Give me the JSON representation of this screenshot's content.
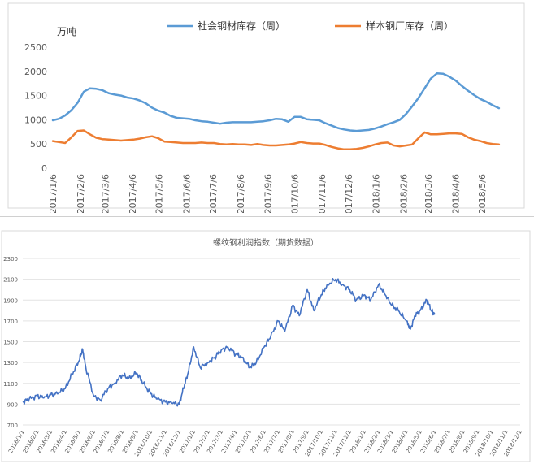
{
  "chart_data": [
    {
      "type": "line",
      "unit": "万吨",
      "ylim": [
        0,
        2500
      ],
      "yticks": [
        0,
        500,
        1000,
        1500,
        2000,
        2500
      ],
      "xticks": [
        "2017/1/6",
        "2017/2/6",
        "2017/3/6",
        "2017/4/6",
        "2017/5/6",
        "2017/6/6",
        "2017/7/6",
        "2017/8/6",
        "2017/9/6",
        "2017/10/6",
        "2017/11/6",
        "2017/12/6",
        "2018/1/6",
        "2018/2/6",
        "2018/3/6",
        "2018/4/6",
        "2018/5/6"
      ],
      "legend_position": "top",
      "grid": false,
      "series": [
        {
          "name": "社会钢材库存（周）",
          "color": "#5b9bd5",
          "x": [
            "2017/1/6",
            "2017/1/13",
            "2017/1/20",
            "2017/1/27",
            "2017/2/3",
            "2017/2/10",
            "2017/2/17",
            "2017/2/24",
            "2017/3/3",
            "2017/3/10",
            "2017/3/17",
            "2017/3/24",
            "2017/3/31",
            "2017/4/7",
            "2017/4/14",
            "2017/4/21",
            "2017/4/28",
            "2017/5/5",
            "2017/5/12",
            "2017/5/19",
            "2017/5/26",
            "2017/6/2",
            "2017/6/9",
            "2017/6/16",
            "2017/6/23",
            "2017/6/30",
            "2017/7/7",
            "2017/7/14",
            "2017/7/21",
            "2017/7/28",
            "2017/8/4",
            "2017/8/11",
            "2017/8/18",
            "2017/8/25",
            "2017/9/1",
            "2017/9/8",
            "2017/9/15",
            "2017/9/22",
            "2017/9/29",
            "2017/10/6",
            "2017/10/13",
            "2017/10/20",
            "2017/10/27",
            "2017/11/3",
            "2017/11/10",
            "2017/11/17",
            "2017/11/24",
            "2017/12/1",
            "2017/12/8",
            "2017/12/15",
            "2017/12/22",
            "2017/12/29",
            "2018/1/5",
            "2018/1/12",
            "2018/1/19",
            "2018/1/26",
            "2018/2/2",
            "2018/2/9",
            "2018/2/16",
            "2018/2/23",
            "2018/3/2",
            "2018/3/9",
            "2018/3/16",
            "2018/3/23",
            "2018/3/30",
            "2018/4/6",
            "2018/4/13",
            "2018/4/20",
            "2018/4/27",
            "2018/5/4",
            "2018/5/11",
            "2018/5/18",
            "2018/5/25"
          ],
          "values": [
            990,
            1020,
            1090,
            1200,
            1350,
            1580,
            1650,
            1640,
            1610,
            1550,
            1520,
            1500,
            1460,
            1440,
            1400,
            1340,
            1250,
            1190,
            1150,
            1080,
            1040,
            1030,
            1020,
            990,
            970,
            960,
            940,
            920,
            940,
            950,
            950,
            950,
            950,
            960,
            970,
            990,
            1020,
            1010,
            960,
            1060,
            1060,
            1010,
            1000,
            990,
            930,
            880,
            830,
            800,
            780,
            770,
            780,
            790,
            820,
            860,
            910,
            950,
            1000,
            1120,
            1280,
            1450,
            1650,
            1850,
            1960,
            1950,
            1890,
            1810,
            1700,
            1600,
            1510,
            1430,
            1370,
            1300,
            1240
          ]
        },
        {
          "name": "样本钢厂库存（周）",
          "color": "#ed7d31",
          "x": [
            "2017/1/6",
            "2017/1/13",
            "2017/1/20",
            "2017/1/27",
            "2017/2/3",
            "2017/2/10",
            "2017/2/17",
            "2017/2/24",
            "2017/3/3",
            "2017/3/10",
            "2017/3/17",
            "2017/3/24",
            "2017/3/31",
            "2017/4/7",
            "2017/4/14",
            "2017/4/21",
            "2017/4/28",
            "2017/5/5",
            "2017/5/12",
            "2017/5/19",
            "2017/5/26",
            "2017/6/2",
            "2017/6/9",
            "2017/6/16",
            "2017/6/23",
            "2017/6/30",
            "2017/7/7",
            "2017/7/14",
            "2017/7/21",
            "2017/7/28",
            "2017/8/4",
            "2017/8/11",
            "2017/8/18",
            "2017/8/25",
            "2017/9/1",
            "2017/9/8",
            "2017/9/15",
            "2017/9/22",
            "2017/9/29",
            "2017/10/6",
            "2017/10/13",
            "2017/10/20",
            "2017/10/27",
            "2017/11/3",
            "2017/11/10",
            "2017/11/17",
            "2017/11/24",
            "2017/12/1",
            "2017/12/8",
            "2017/12/15",
            "2017/12/22",
            "2017/12/29",
            "2018/1/5",
            "2018/1/12",
            "2018/1/19",
            "2018/1/26",
            "2018/2/2",
            "2018/2/9",
            "2018/2/16",
            "2018/2/23",
            "2018/3/2",
            "2018/3/9",
            "2018/3/16",
            "2018/3/23",
            "2018/3/30",
            "2018/4/6",
            "2018/4/13",
            "2018/4/20",
            "2018/4/27",
            "2018/5/4",
            "2018/5/11",
            "2018/5/18",
            "2018/5/25"
          ],
          "values": [
            560,
            540,
            520,
            640,
            770,
            780,
            700,
            630,
            600,
            590,
            580,
            570,
            580,
            590,
            610,
            640,
            660,
            620,
            550,
            540,
            530,
            520,
            520,
            520,
            530,
            520,
            520,
            500,
            490,
            500,
            490,
            490,
            480,
            500,
            480,
            470,
            470,
            480,
            490,
            510,
            540,
            520,
            510,
            510,
            480,
            440,
            410,
            390,
            390,
            400,
            420,
            450,
            490,
            520,
            530,
            470,
            450,
            470,
            490,
            620,
            740,
            700,
            700,
            710,
            720,
            720,
            710,
            640,
            590,
            560,
            520,
            500,
            490
          ]
        }
      ]
    },
    {
      "type": "line",
      "title": "螺纹钢利润指数（期货数据）",
      "ylim": [
        700,
        2300
      ],
      "yticks": [
        700,
        900,
        1100,
        1300,
        1500,
        1700,
        1900,
        2100,
        2300
      ],
      "xticks": [
        "2016/1/1",
        "2016/2/1",
        "2016/3/1",
        "2016/4/1",
        "2016/5/1",
        "2016/6/1",
        "2016/7/1",
        "2016/8/1",
        "2016/9/1",
        "2016/10/1",
        "2016/11/1",
        "2016/12/1",
        "2017/1/1",
        "2017/2/1",
        "2017/3/1",
        "2017/4/1",
        "2017/5/1",
        "2017/6/1",
        "2017/7/1",
        "2017/8/1",
        "2017/9/1",
        "2017/10/1",
        "2017/11/1",
        "2017/12/1",
        "2018/1/1",
        "2018/2/1",
        "2018/3/1",
        "2018/4/1",
        "2018/5/1",
        "2018/6/1",
        "2018/7/1",
        "2018/8/1",
        "2018/9/1",
        "2018/10/1",
        "2018/11/1",
        "2018/12/1"
      ],
      "grid": true,
      "series": [
        {
          "name": "",
          "color": "#4472c4",
          "x": [
            "2016/1/1",
            "2016/1/15",
            "2016/2/1",
            "2016/2/15",
            "2016/3/1",
            "2016/3/15",
            "2016/4/1",
            "2016/4/15",
            "2016/5/1",
            "2016/5/8",
            "2016/5/15",
            "2016/6/1",
            "2016/6/15",
            "2016/7/1",
            "2016/7/15",
            "2016/8/1",
            "2016/8/15",
            "2016/9/1",
            "2016/9/15",
            "2016/10/1",
            "2016/10/15",
            "2016/11/1",
            "2016/11/15",
            "2016/12/1",
            "2016/12/10",
            "2016/12/20",
            "2017/1/1",
            "2017/1/15",
            "2017/2/1",
            "2017/2/15",
            "2017/3/1",
            "2017/3/15",
            "2017/4/1",
            "2017/4/15",
            "2017/5/1",
            "2017/5/15",
            "2017/6/1",
            "2017/6/15",
            "2017/7/1",
            "2017/7/15",
            "2017/8/1",
            "2017/8/15",
            "2017/9/1",
            "2017/9/15",
            "2017/10/1",
            "2017/10/15",
            "2017/11/1",
            "2017/11/15",
            "2017/12/1",
            "2017/12/15",
            "2018/1/1",
            "2018/1/15",
            "2018/2/1",
            "2018/2/15",
            "2018/3/1",
            "2018/3/15",
            "2018/4/1",
            "2018/4/10",
            "2018/4/20",
            "2018/5/1",
            "2018/5/15",
            "2018/5/25",
            "2018/6/1"
          ],
          "values": [
            920,
            950,
            980,
            960,
            990,
            1000,
            1050,
            1180,
            1320,
            1430,
            1250,
            980,
            940,
            1050,
            1100,
            1180,
            1150,
            1200,
            1100,
            1000,
            950,
            920,
            910,
            900,
            1050,
            1200,
            1450,
            1250,
            1300,
            1350,
            1420,
            1450,
            1380,
            1350,
            1250,
            1300,
            1450,
            1550,
            1700,
            1600,
            1850,
            1750,
            2000,
            1800,
            1950,
            2050,
            2100,
            2050,
            2000,
            1900,
            1950,
            1900,
            2050,
            1950,
            1850,
            1800,
            1700,
            1620,
            1750,
            1800,
            1900,
            1800,
            1760
          ]
        }
      ]
    }
  ]
}
